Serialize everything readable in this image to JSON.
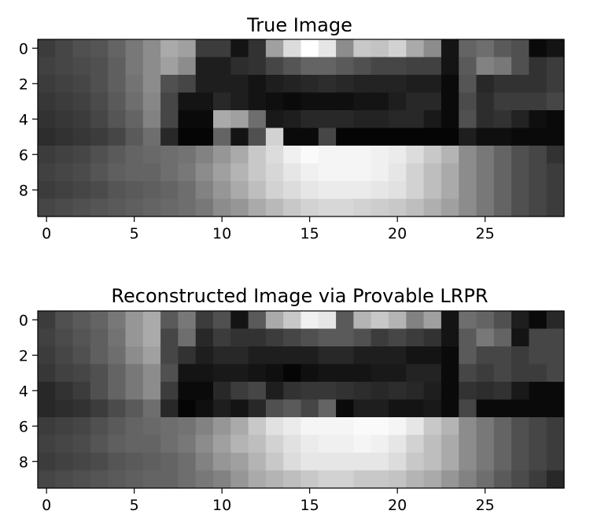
{
  "chart_data": [
    {
      "type": "heatmap",
      "title": "True Image",
      "colormap": "gray",
      "rows": 10,
      "cols": 30,
      "xticks": [
        0,
        5,
        10,
        15,
        20,
        25
      ],
      "yticks": [
        0,
        2,
        4,
        6,
        8
      ],
      "values": [
        [
          60,
          70,
          80,
          85,
          100,
          120,
          140,
          170,
          160,
          60,
          60,
          20,
          50,
          160,
          220,
          255,
          230,
          140,
          200,
          195,
          210,
          170,
          140,
          20,
          100,
          110,
          90,
          80,
          10,
          20
        ],
        [
          65,
          70,
          75,
          80,
          95,
          120,
          140,
          160,
          140,
          30,
          30,
          45,
          50,
          70,
          85,
          100,
          100,
          90,
          80,
          70,
          70,
          65,
          65,
          20,
          90,
          130,
          120,
          80,
          50,
          60
        ],
        [
          60,
          65,
          70,
          80,
          95,
          115,
          140,
          80,
          70,
          30,
          30,
          30,
          20,
          30,
          35,
          40,
          45,
          40,
          35,
          35,
          35,
          30,
          30,
          10,
          85,
          40,
          50,
          50,
          50,
          60
        ],
        [
          55,
          60,
          65,
          75,
          90,
          110,
          135,
          70,
          20,
          20,
          40,
          30,
          20,
          15,
          10,
          15,
          15,
          15,
          20,
          20,
          30,
          40,
          40,
          10,
          75,
          45,
          60,
          60,
          60,
          70
        ],
        [
          50,
          55,
          60,
          70,
          85,
          100,
          130,
          70,
          10,
          10,
          170,
          160,
          110,
          25,
          30,
          40,
          40,
          40,
          35,
          35,
          40,
          40,
          25,
          10,
          80,
          45,
          50,
          35,
          15,
          10
        ],
        [
          45,
          50,
          55,
          60,
          70,
          90,
          110,
          40,
          5,
          5,
          100,
          20,
          80,
          210,
          10,
          10,
          70,
          5,
          5,
          5,
          5,
          5,
          5,
          5,
          30,
          15,
          15,
          10,
          10,
          10
        ],
        [
          60,
          65,
          70,
          80,
          90,
          100,
          105,
          110,
          115,
          130,
          150,
          170,
          200,
          220,
          240,
          250,
          245,
          245,
          245,
          240,
          235,
          220,
          200,
          180,
          140,
          120,
          100,
          80,
          70,
          50
        ],
        [
          65,
          70,
          75,
          85,
          95,
          100,
          100,
          110,
          120,
          140,
          160,
          180,
          200,
          215,
          230,
          240,
          245,
          245,
          245,
          240,
          230,
          210,
          190,
          170,
          140,
          120,
          100,
          80,
          70,
          60
        ],
        [
          60,
          65,
          70,
          75,
          85,
          90,
          95,
          100,
          110,
          130,
          150,
          170,
          190,
          210,
          220,
          230,
          235,
          235,
          235,
          230,
          225,
          210,
          190,
          170,
          140,
          120,
          100,
          80,
          70,
          60
        ],
        [
          70,
          75,
          80,
          85,
          90,
          95,
          100,
          105,
          110,
          120,
          140,
          150,
          170,
          185,
          200,
          210,
          215,
          215,
          210,
          205,
          200,
          190,
          175,
          160,
          140,
          120,
          100,
          80,
          70,
          60
        ]
      ]
    },
    {
      "type": "heatmap",
      "title": "Reconstructed Image via Provable LRPR",
      "colormap": "gray",
      "rows": 10,
      "cols": 30,
      "xticks": [
        0,
        5,
        10,
        15,
        20,
        25
      ],
      "yticks": [
        0,
        2,
        4,
        6,
        8
      ],
      "values": [
        [
          60,
          80,
          90,
          100,
          120,
          150,
          170,
          90,
          120,
          60,
          80,
          20,
          90,
          170,
          200,
          240,
          230,
          90,
          180,
          200,
          180,
          130,
          160,
          20,
          110,
          100,
          80,
          30,
          10,
          40
        ],
        [
          65,
          75,
          85,
          95,
          115,
          150,
          170,
          70,
          110,
          40,
          60,
          50,
          50,
          60,
          70,
          80,
          90,
          90,
          80,
          60,
          70,
          60,
          50,
          20,
          90,
          120,
          100,
          20,
          70,
          70
        ],
        [
          60,
          70,
          80,
          95,
          110,
          140,
          160,
          70,
          50,
          30,
          40,
          40,
          30,
          30,
          30,
          30,
          40,
          40,
          30,
          30,
          30,
          20,
          20,
          10,
          90,
          70,
          70,
          60,
          70,
          70
        ],
        [
          55,
          65,
          70,
          80,
          100,
          120,
          140,
          80,
          20,
          20,
          25,
          25,
          20,
          15,
          5,
          15,
          20,
          20,
          20,
          25,
          25,
          35,
          35,
          10,
          70,
          60,
          70,
          60,
          60,
          70
        ],
        [
          40,
          50,
          60,
          80,
          100,
          120,
          140,
          60,
          10,
          10,
          40,
          60,
          70,
          30,
          50,
          55,
          55,
          50,
          45,
          40,
          45,
          40,
          30,
          10,
          50,
          45,
          50,
          25,
          10,
          10
        ],
        [
          40,
          45,
          50,
          60,
          75,
          90,
          110,
          40,
          5,
          15,
          30,
          20,
          40,
          80,
          90,
          70,
          100,
          10,
          30,
          30,
          20,
          20,
          25,
          10,
          70,
          10,
          10,
          10,
          10,
          10
        ],
        [
          60,
          65,
          70,
          80,
          90,
          100,
          105,
          110,
          115,
          130,
          150,
          170,
          200,
          225,
          235,
          245,
          245,
          245,
          250,
          250,
          245,
          230,
          200,
          180,
          140,
          120,
          100,
          80,
          70,
          60
        ],
        [
          65,
          70,
          75,
          85,
          95,
          100,
          100,
          110,
          120,
          140,
          160,
          180,
          190,
          210,
          225,
          235,
          240,
          240,
          245,
          240,
          230,
          210,
          190,
          170,
          140,
          120,
          100,
          80,
          70,
          60
        ],
        [
          60,
          65,
          70,
          75,
          85,
          90,
          95,
          100,
          110,
          130,
          150,
          160,
          180,
          200,
          220,
          230,
          230,
          230,
          230,
          230,
          220,
          200,
          190,
          170,
          140,
          120,
          100,
          80,
          70,
          60
        ],
        [
          70,
          75,
          80,
          85,
          90,
          95,
          100,
          100,
          110,
          120,
          130,
          150,
          170,
          180,
          190,
          200,
          210,
          210,
          200,
          200,
          195,
          180,
          170,
          150,
          130,
          110,
          90,
          75,
          60,
          40
        ]
      ]
    }
  ]
}
